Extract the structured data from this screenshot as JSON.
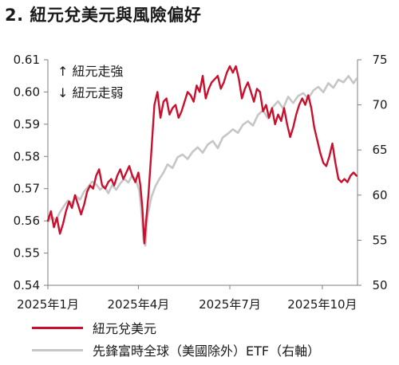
{
  "title": "2. 紐元兌美元與風險偏好",
  "chart_data": {
    "type": "line",
    "title": "2. 紐元兌美元與風險偏好",
    "annotations": [
      "↑ 紐元走強",
      "↓ 紐元走弱"
    ],
    "x_tick_labels": [
      "2025年1月",
      "2025年4月",
      "2025年7月",
      "2025年10月"
    ],
    "y_left": {
      "lim": [
        0.54,
        0.61
      ],
      "ticks": [
        "0.54",
        "0.55",
        "0.56",
        "0.57",
        "0.58",
        "0.59",
        "0.60",
        "0.61"
      ]
    },
    "y_right": {
      "lim": [
        50,
        75
      ],
      "ticks": [
        "50",
        "55",
        "60",
        "65",
        "70",
        "75"
      ]
    },
    "grid": false,
    "legend_position": "bottom",
    "colors": {
      "nzd": "#c8102e",
      "etf": "#c6c6c6",
      "axis": "#7f7f7f"
    },
    "series": [
      {
        "name": "紐元兌美元",
        "axis": "left",
        "color": "#c8102e",
        "x": [
          "2025-01-01",
          "2025-01-04",
          "2025-01-07",
          "2025-01-10",
          "2025-01-13",
          "2025-01-16",
          "2025-01-19",
          "2025-01-22",
          "2025-01-25",
          "2025-01-28",
          "2025-01-31",
          "2025-02-03",
          "2025-02-06",
          "2025-02-09",
          "2025-02-12",
          "2025-02-15",
          "2025-02-18",
          "2025-02-21",
          "2025-02-24",
          "2025-02-27",
          "2025-03-02",
          "2025-03-05",
          "2025-03-08",
          "2025-03-11",
          "2025-03-14",
          "2025-03-17",
          "2025-03-20",
          "2025-03-23",
          "2025-03-26",
          "2025-03-29",
          "2025-04-01",
          "2025-04-03",
          "2025-04-05",
          "2025-04-07",
          "2025-04-09",
          "2025-04-11",
          "2025-04-14",
          "2025-04-17",
          "2025-04-20",
          "2025-04-23",
          "2025-04-26",
          "2025-04-29",
          "2025-05-02",
          "2025-05-05",
          "2025-05-08",
          "2025-05-11",
          "2025-05-14",
          "2025-05-17",
          "2025-05-20",
          "2025-05-23",
          "2025-05-26",
          "2025-05-29",
          "2025-06-01",
          "2025-06-04",
          "2025-06-07",
          "2025-06-10",
          "2025-06-13",
          "2025-06-16",
          "2025-06-19",
          "2025-06-22",
          "2025-06-25",
          "2025-06-28",
          "2025-07-01",
          "2025-07-04",
          "2025-07-07",
          "2025-07-10",
          "2025-07-13",
          "2025-07-16",
          "2025-07-19",
          "2025-07-22",
          "2025-07-25",
          "2025-07-28",
          "2025-07-31",
          "2025-08-03",
          "2025-08-06",
          "2025-08-09",
          "2025-08-12",
          "2025-08-15",
          "2025-08-18",
          "2025-08-21",
          "2025-08-24",
          "2025-08-27",
          "2025-08-30",
          "2025-09-02",
          "2025-09-05",
          "2025-09-08",
          "2025-09-11",
          "2025-09-14",
          "2025-09-17",
          "2025-09-20",
          "2025-09-23",
          "2025-09-26",
          "2025-09-29",
          "2025-10-02",
          "2025-10-05",
          "2025-10-08",
          "2025-10-11",
          "2025-10-14",
          "2025-10-17",
          "2025-10-20",
          "2025-10-23",
          "2025-10-26",
          "2025-10-29",
          "2025-11-01",
          "2025-11-04"
        ],
        "values": [
          0.56,
          0.563,
          0.558,
          0.561,
          0.556,
          0.559,
          0.563,
          0.566,
          0.564,
          0.568,
          0.565,
          0.562,
          0.565,
          0.569,
          0.571,
          0.57,
          0.574,
          0.576,
          0.571,
          0.57,
          0.572,
          0.573,
          0.571,
          0.574,
          0.576,
          0.573,
          0.575,
          0.577,
          0.574,
          0.572,
          0.575,
          0.571,
          0.564,
          0.553,
          0.561,
          0.568,
          0.582,
          0.596,
          0.6,
          0.592,
          0.597,
          0.598,
          0.593,
          0.595,
          0.596,
          0.592,
          0.594,
          0.597,
          0.6,
          0.599,
          0.597,
          0.602,
          0.6,
          0.605,
          0.598,
          0.601,
          0.603,
          0.604,
          0.605,
          0.601,
          0.603,
          0.606,
          0.608,
          0.606,
          0.608,
          0.604,
          0.598,
          0.601,
          0.603,
          0.6,
          0.597,
          0.601,
          0.6,
          0.594,
          0.596,
          0.592,
          0.595,
          0.59,
          0.593,
          0.591,
          0.595,
          0.59,
          0.586,
          0.589,
          0.593,
          0.596,
          0.598,
          0.596,
          0.599,
          0.595,
          0.589,
          0.585,
          0.581,
          0.578,
          0.577,
          0.58,
          0.584,
          0.578,
          0.573,
          0.572,
          0.573,
          0.572,
          0.574,
          0.575,
          0.574
        ]
      },
      {
        "name": "先鋒富時全球（美國除外）ETF（右軸）",
        "axis": "right",
        "color": "#c6c6c6",
        "x": [
          "2025-01-01",
          "2025-01-05",
          "2025-01-09",
          "2025-01-13",
          "2025-01-17",
          "2025-01-21",
          "2025-01-25",
          "2025-01-29",
          "2025-02-02",
          "2025-02-06",
          "2025-02-10",
          "2025-02-14",
          "2025-02-18",
          "2025-02-22",
          "2025-02-26",
          "2025-03-02",
          "2025-03-06",
          "2025-03-10",
          "2025-03-14",
          "2025-03-18",
          "2025-03-22",
          "2025-03-26",
          "2025-03-30",
          "2025-04-02",
          "2025-04-04",
          "2025-04-06",
          "2025-04-08",
          "2025-04-10",
          "2025-04-14",
          "2025-04-18",
          "2025-04-22",
          "2025-04-26",
          "2025-04-30",
          "2025-05-05",
          "2025-05-10",
          "2025-05-15",
          "2025-05-20",
          "2025-05-25",
          "2025-05-30",
          "2025-06-04",
          "2025-06-09",
          "2025-06-14",
          "2025-06-19",
          "2025-06-24",
          "2025-06-29",
          "2025-07-04",
          "2025-07-09",
          "2025-07-14",
          "2025-07-19",
          "2025-07-24",
          "2025-07-29",
          "2025-08-03",
          "2025-08-08",
          "2025-08-13",
          "2025-08-18",
          "2025-08-23",
          "2025-08-28",
          "2025-09-02",
          "2025-09-07",
          "2025-09-12",
          "2025-09-17",
          "2025-09-22",
          "2025-09-27",
          "2025-10-02",
          "2025-10-07",
          "2025-10-12",
          "2025-10-17",
          "2025-10-22",
          "2025-10-27",
          "2025-11-01",
          "2025-11-04"
        ],
        "values": [
          57.0,
          57.6,
          57.2,
          58.1,
          58.8,
          59.4,
          59.1,
          59.9,
          59.5,
          60.4,
          60.9,
          61.5,
          61.2,
          60.6,
          61.0,
          60.2,
          61.1,
          60.6,
          61.3,
          61.8,
          61.4,
          62.2,
          61.5,
          60.5,
          58.2,
          55.1,
          54.4,
          57.6,
          59.8,
          61.0,
          61.8,
          62.5,
          63.4,
          63.0,
          64.2,
          64.5,
          64.0,
          64.8,
          65.3,
          64.7,
          65.6,
          66.0,
          65.2,
          66.4,
          66.8,
          67.3,
          66.9,
          67.8,
          68.2,
          67.7,
          68.9,
          69.4,
          68.5,
          69.8,
          70.4,
          69.6,
          70.9,
          70.2,
          71.0,
          71.3,
          70.7,
          71.6,
          72.0,
          71.4,
          72.4,
          71.9,
          72.8,
          72.5,
          73.2,
          72.4,
          72.9
        ]
      }
    ]
  },
  "legend": [
    {
      "label": "紐元兌美元",
      "color": "#c8102e"
    },
    {
      "label": "先鋒富時全球（美國除外）ETF（右軸）",
      "color": "#c6c6c6"
    }
  ]
}
